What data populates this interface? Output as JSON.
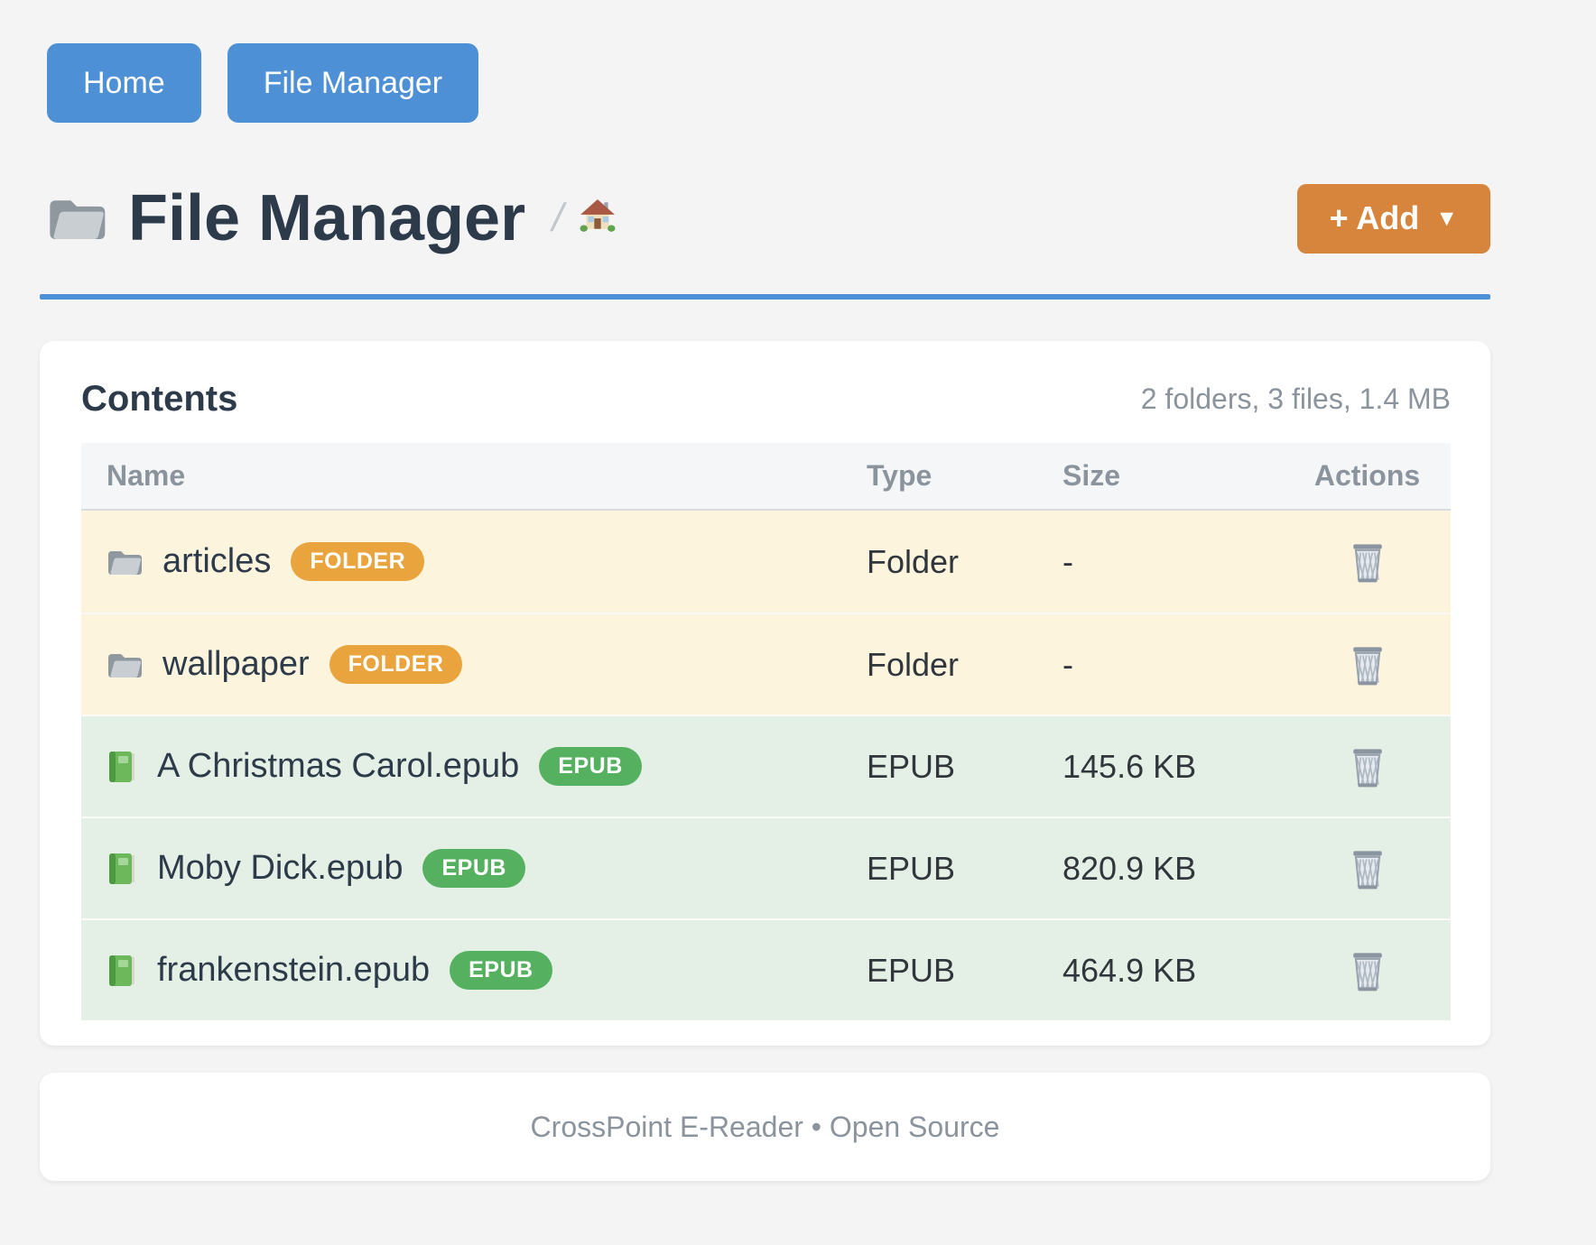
{
  "nav": {
    "items": [
      {
        "label": "Home"
      },
      {
        "label": "File Manager"
      }
    ]
  },
  "header": {
    "title": "File Manager",
    "title_icon": "folder-icon",
    "breadcrumb_separator": "/",
    "breadcrumb_home_icon": "house-icon",
    "add_button_label": "+ Add",
    "add_button_caret": "▼"
  },
  "colors": {
    "accent_blue": "#4d90d5",
    "accent_orange": "#d7843c",
    "badge_folder": "#e9a43e",
    "badge_epub": "#55b160",
    "row_folder_bg": "#fcf4dd",
    "row_epub_bg": "#e4f0e5",
    "page_bg": "#f4f4f5"
  },
  "contents_card": {
    "title": "Contents",
    "summary": "2 folders, 3 files, 1.4 MB",
    "columns": [
      "Name",
      "Type",
      "Size",
      "Actions"
    ],
    "action_icon": "wastebasket-icon",
    "rows": [
      {
        "name": "articles",
        "kind": "folder",
        "icon": "folder-icon",
        "badge": "FOLDER",
        "type": "Folder",
        "size": "-"
      },
      {
        "name": "wallpaper",
        "kind": "folder",
        "icon": "folder-icon",
        "badge": "FOLDER",
        "type": "Folder",
        "size": "-"
      },
      {
        "name": "A Christmas Carol.epub",
        "kind": "epub",
        "icon": "book-icon",
        "badge": "EPUB",
        "type": "EPUB",
        "size": "145.6 KB"
      },
      {
        "name": "Moby Dick.epub",
        "kind": "epub",
        "icon": "book-icon",
        "badge": "EPUB",
        "type": "EPUB",
        "size": "820.9 KB"
      },
      {
        "name": "frankenstein.epub",
        "kind": "epub",
        "icon": "book-icon",
        "badge": "EPUB",
        "type": "EPUB",
        "size": "464.9 KB"
      }
    ]
  },
  "footer": {
    "text": "CrossPoint E-Reader • Open Source"
  }
}
